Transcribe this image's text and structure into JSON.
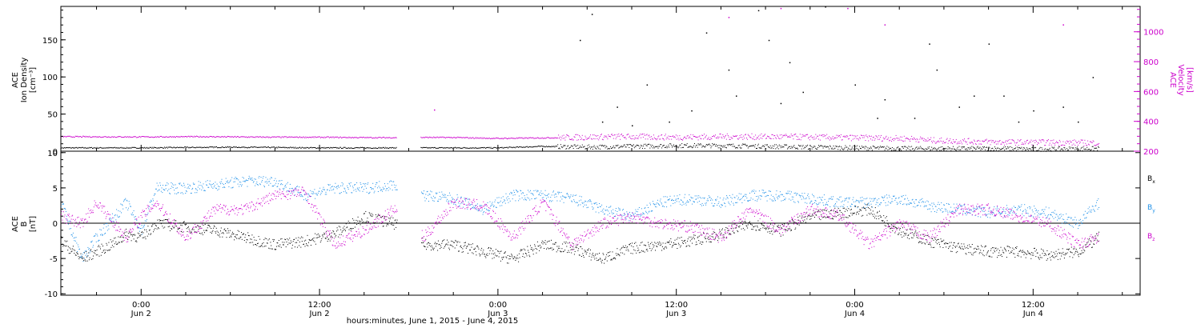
{
  "chart_data": [
    {
      "type": "scatter",
      "panel": "top",
      "left_axis_label": [
        "ACE",
        "Ion Density",
        "[cm⁻³]"
      ],
      "right_axis_label": [
        "ACE",
        "Velocity",
        "[km/s]"
      ],
      "left_ylim": [
        0,
        195
      ],
      "left_ticks": [
        0,
        50,
        100,
        150
      ],
      "right_ylim": [
        200,
        1170
      ],
      "right_ticks": [
        200,
        400,
        600,
        800,
        1000
      ],
      "series": [
        {
          "axis": "left",
          "color": "#000000",
          "points_hours": [
            [
              -5.4,
              5
            ],
            [
              -2,
              5
            ],
            [
              0,
              5
            ],
            [
              6,
              6
            ],
            [
              12,
              5
            ],
            [
              17,
              5
            ],
            [
              19,
              5
            ],
            [
              24,
              5
            ],
            [
              27,
              7
            ],
            [
              30,
              6
            ],
            [
              33,
              7
            ],
            [
              36,
              8
            ],
            [
              39,
              8
            ],
            [
              42,
              7
            ],
            [
              45,
              6
            ],
            [
              48,
              5
            ],
            [
              52,
              4
            ],
            [
              54,
              4
            ],
            [
              58,
              4
            ],
            [
              60,
              3
            ],
            [
              64.4,
              4
            ]
          ],
          "spikes_hours": [
            [
              29.5,
              150
            ],
            [
              30.3,
              185
            ],
            [
              31,
              40
            ],
            [
              32,
              60
            ],
            [
              33,
              35
            ],
            [
              34,
              90
            ],
            [
              35.5,
              40
            ],
            [
              37,
              55
            ],
            [
              38,
              160
            ],
            [
              39.5,
              110
            ],
            [
              40,
              75
            ],
            [
              41.5,
              190
            ],
            [
              42.2,
              150
            ],
            [
              43,
              65
            ],
            [
              43.6,
              120
            ],
            [
              44.5,
              80
            ],
            [
              46,
              195
            ],
            [
              48,
              90
            ],
            [
              49.5,
              45
            ],
            [
              50,
              70
            ],
            [
              52,
              45
            ],
            [
              53,
              145
            ],
            [
              53.5,
              110
            ],
            [
              55,
              60
            ],
            [
              56,
              75
            ],
            [
              57,
              145
            ],
            [
              58,
              75
            ],
            [
              59,
              40
            ],
            [
              60,
              55
            ],
            [
              62,
              60
            ],
            [
              63,
              40
            ],
            [
              64,
              100
            ]
          ]
        },
        {
          "axis": "right",
          "color": "#cc00cc",
          "points_hours": [
            [
              -5.4,
              300
            ],
            [
              0,
              298
            ],
            [
              4,
              300
            ],
            [
              8,
              297
            ],
            [
              12,
              296
            ],
            [
              16,
              293
            ],
            [
              19.5,
              295
            ],
            [
              21,
              294
            ],
            [
              24,
              288
            ],
            [
              28,
              293
            ],
            [
              32,
              300
            ],
            [
              36,
              296
            ],
            [
              40,
              300
            ],
            [
              44,
              298
            ],
            [
              48,
              292
            ],
            [
              50,
              290
            ],
            [
              52,
              285
            ],
            [
              53,
              275
            ],
            [
              55,
              270
            ],
            [
              58,
              262
            ],
            [
              62,
              260
            ],
            [
              64.4,
              258
            ]
          ],
          "spikes_hours": [
            [
              19.7,
              480
            ],
            [
              39.5,
              1100
            ],
            [
              43,
              1160
            ],
            [
              47.5,
              1160
            ],
            [
              50,
              1050
            ],
            [
              62,
              1050
            ]
          ]
        }
      ],
      "gaps_hours": [
        [
          17.2,
          18.8
        ]
      ]
    },
    {
      "type": "scatter",
      "panel": "bottom",
      "left_axis_label": [
        "ACE",
        "B",
        "[nT]"
      ],
      "ylim": [
        -10.2,
        10.2
      ],
      "y_ticks": [
        -10,
        -5,
        0,
        5,
        10
      ],
      "zero_line": true,
      "series": [
        {
          "name": "Bx",
          "color": "#000000",
          "points_hours": [
            [
              -5.4,
              -2.5
            ],
            [
              -4,
              -5
            ],
            [
              -2,
              -3
            ],
            [
              -1,
              -1.5
            ],
            [
              0,
              -2
            ],
            [
              1,
              0
            ],
            [
              3,
              -0.5
            ],
            [
              5,
              -1
            ],
            [
              7,
              -2
            ],
            [
              9,
              -3
            ],
            [
              11,
              -2.5
            ],
            [
              13,
              -1.5
            ],
            [
              15,
              1
            ],
            [
              17,
              0
            ],
            [
              19,
              -3
            ],
            [
              21,
              -3
            ],
            [
              23,
              -4
            ],
            [
              25,
              -5
            ],
            [
              27,
              -3
            ],
            [
              29,
              -3.5
            ],
            [
              31,
              -5
            ],
            [
              33,
              -3.5
            ],
            [
              35,
              -3
            ],
            [
              37,
              -2.5
            ],
            [
              39,
              -1.5
            ],
            [
              41,
              0
            ],
            [
              43,
              -1
            ],
            [
              45,
              1
            ],
            [
              47,
              1.5
            ],
            [
              49,
              2
            ],
            [
              51,
              -1
            ],
            [
              53,
              -2.5
            ],
            [
              55,
              -3.5
            ],
            [
              57,
              -4
            ],
            [
              59,
              -4
            ],
            [
              61,
              -4.5
            ],
            [
              63,
              -4
            ],
            [
              64.4,
              -2
            ]
          ]
        },
        {
          "name": "By",
          "color": "#1e90e8",
          "points_hours": [
            [
              -5.4,
              3
            ],
            [
              -4,
              -5
            ],
            [
              -3,
              -2
            ],
            [
              -1,
              3
            ],
            [
              0,
              -1
            ],
            [
              1,
              5
            ],
            [
              3,
              5
            ],
            [
              5,
              5.5
            ],
            [
              7,
              6
            ],
            [
              9,
              6
            ],
            [
              11,
              4
            ],
            [
              13,
              5
            ],
            [
              15,
              5
            ],
            [
              17,
              5.5
            ],
            [
              19,
              4
            ],
            [
              21,
              3.5
            ],
            [
              23,
              2
            ],
            [
              25,
              4
            ],
            [
              27,
              4
            ],
            [
              29,
              3.5
            ],
            [
              31,
              2
            ],
            [
              33,
              1
            ],
            [
              35,
              3
            ],
            [
              37,
              3.5
            ],
            [
              39,
              3
            ],
            [
              41,
              4
            ],
            [
              43,
              4
            ],
            [
              45,
              3.5
            ],
            [
              47,
              3
            ],
            [
              49,
              3
            ],
            [
              51,
              3.5
            ],
            [
              53,
              2.5
            ],
            [
              55,
              2
            ],
            [
              57,
              1.5
            ],
            [
              59,
              2
            ],
            [
              61,
              1.5
            ],
            [
              63,
              0
            ],
            [
              64.4,
              3
            ]
          ]
        },
        {
          "name": "Bz",
          "color": "#cc00cc",
          "points_hours": [
            [
              -5.4,
              1
            ],
            [
              -4,
              0
            ],
            [
              -3,
              3
            ],
            [
              -1,
              -2
            ],
            [
              0,
              1
            ],
            [
              1,
              3
            ],
            [
              3,
              -2
            ],
            [
              5,
              2
            ],
            [
              7,
              2
            ],
            [
              9,
              4
            ],
            [
              11,
              4.5
            ],
            [
              13,
              -3
            ],
            [
              15,
              -1
            ],
            [
              17,
              2
            ],
            [
              19,
              -2
            ],
            [
              21,
              3
            ],
            [
              23,
              2.5
            ],
            [
              25,
              -2
            ],
            [
              27,
              3
            ],
            [
              29,
              -3
            ],
            [
              31,
              0
            ],
            [
              33,
              1
            ],
            [
              35,
              0
            ],
            [
              37,
              -0.5
            ],
            [
              39,
              -2
            ],
            [
              41,
              2
            ],
            [
              43,
              -1
            ],
            [
              45,
              2
            ],
            [
              47,
              1
            ],
            [
              49,
              -3
            ],
            [
              51,
              0
            ],
            [
              53,
              -2
            ],
            [
              55,
              2
            ],
            [
              57,
              2
            ],
            [
              59,
              1
            ],
            [
              61,
              0
            ],
            [
              63,
              -3
            ],
            [
              64.4,
              -2
            ]
          ]
        }
      ],
      "legend": {
        "entries": [
          "B",
          "B",
          "B"
        ],
        "subs": [
          "x",
          "y",
          "z"
        ],
        "colors": [
          "#000000",
          "#1e90e8",
          "#cc00cc"
        ],
        "placement": "right"
      },
      "gaps_hours": [
        [
          17.2,
          18.8
        ]
      ]
    }
  ],
  "x_axis": {
    "range_hours": [
      -5.4,
      67.2
    ],
    "ticks": [
      {
        "hour": 0,
        "time": "0:00",
        "date": "Jun 2"
      },
      {
        "hour": 12,
        "time": "12:00",
        "date": "Jun 2"
      },
      {
        "hour": 24,
        "time": "0:00",
        "date": "Jun 3"
      },
      {
        "hour": 36,
        "time": "12:00",
        "date": "Jun 3"
      },
      {
        "hour": 48,
        "time": "0:00",
        "date": "Jun 4"
      },
      {
        "hour": 60,
        "time": "12:00",
        "date": "Jun 4"
      }
    ],
    "title": "hours:minutes, June  1, 2015 - June  4, 2015"
  }
}
